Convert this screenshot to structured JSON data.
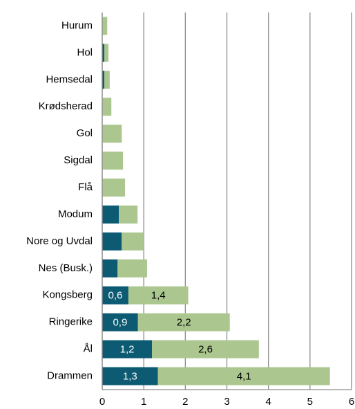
{
  "chart_data": {
    "type": "stacked-bar-horizontal",
    "categories": [
      "Hurum",
      "Hol",
      "Hemsedal",
      "Krødsherad",
      "Gol",
      "Sigdal",
      "Flå",
      "Modum",
      "Nore og Uvdal",
      "Nes (Busk.)",
      "Kongsberg",
      "Ringerike",
      "Ål",
      "Drammen"
    ],
    "series": [
      {
        "color": "#0d5a73",
        "values": [
          0,
          0.05,
          0.05,
          0,
          0,
          0,
          0,
          0.4,
          0.47,
          0.37,
          0.63,
          0.86,
          1.2,
          1.34
        ],
        "value_labels": [
          null,
          null,
          null,
          null,
          null,
          null,
          null,
          null,
          null,
          null,
          "0,6",
          "0,9",
          "1,2",
          "1,3"
        ],
        "label_color": "#ffffff"
      },
      {
        "color": "#abc78f",
        "values": [
          0.12,
          0.1,
          0.13,
          0.22,
          0.47,
          0.5,
          0.55,
          0.45,
          0.53,
          0.71,
          1.44,
          2.21,
          2.57,
          4.14
        ],
        "value_labels": [
          null,
          null,
          null,
          null,
          null,
          null,
          null,
          null,
          null,
          null,
          "1,4",
          "2,2",
          "2,6",
          "4,1"
        ],
        "label_color": "#000000"
      }
    ],
    "xlim": [
      0,
      6
    ],
    "xticks": [
      0,
      1,
      2,
      3,
      4,
      5,
      6
    ],
    "grid": true
  }
}
